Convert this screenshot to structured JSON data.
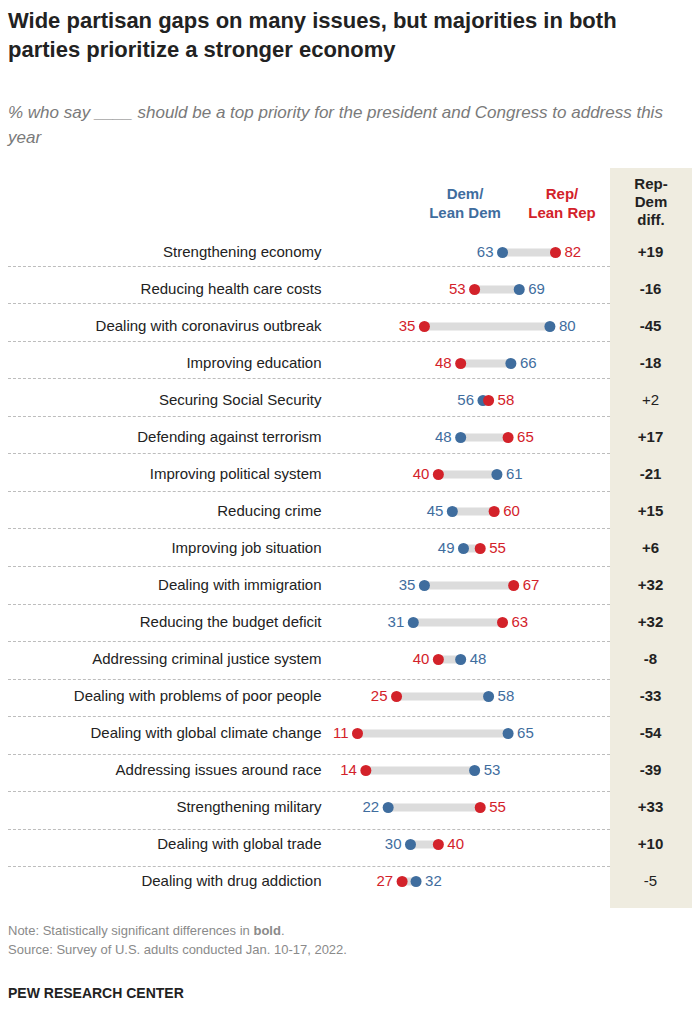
{
  "chart_data": {
    "type": "dot",
    "orientation": "horizontal",
    "title": "Wide partisan gaps on many issues, but majorities in both parties prioritize a stronger economy",
    "subtitle": "% who say ____ should be a top priority for the president and Congress to address this year",
    "categories": [
      "Strengthening economy",
      "Reducing health care costs",
      "Dealing with coronavirus outbreak",
      "Improving education",
      "Securing Social Security",
      "Defending against terrorism",
      "Improving political system",
      "Reducing crime",
      "Improving job situation",
      "Dealing with immigration",
      "Reducing the budget deficit",
      "Addressing criminal justice system",
      "Dealing with problems of poor people",
      "Dealing with global climate change",
      "Addressing issues around race",
      "Strengthening military",
      "Dealing with global trade",
      "Dealing with drug addiction"
    ],
    "series": [
      {
        "name": "Dem/Lean Dem",
        "color": "#3f6d9e",
        "values": [
          63,
          69,
          80,
          66,
          56,
          48,
          61,
          45,
          49,
          35,
          31,
          48,
          58,
          65,
          53,
          22,
          30,
          32
        ]
      },
      {
        "name": "Rep/Lean Rep",
        "color": "#d3222a",
        "values": [
          82,
          53,
          35,
          48,
          58,
          65,
          40,
          60,
          55,
          67,
          63,
          40,
          25,
          11,
          14,
          55,
          40,
          27
        ]
      }
    ],
    "data_labels": true,
    "tick_labels": "y",
    "differences": {
      "title": "Rep-Dem diff.",
      "values": [
        19,
        -16,
        -45,
        -18,
        2,
        17,
        -21,
        15,
        6,
        32,
        32,
        -8,
        -33,
        -54,
        -39,
        33,
        10,
        -5
      ],
      "value_labels": [
        "+19",
        "-16",
        "-45",
        "-18",
        "+2",
        "+17",
        "-21",
        "+15",
        "+6",
        "+32",
        "+32",
        "-8",
        "-33",
        "-54",
        "-39",
        "+33",
        "+10",
        "-5"
      ],
      "significant": [
        true,
        true,
        true,
        true,
        false,
        true,
        true,
        true,
        true,
        true,
        true,
        true,
        true,
        true,
        true,
        true,
        true,
        false
      ]
    },
    "note": "Note: Statistically significant differences in bold.",
    "source": "Source: Survey of U.S. adults conducted Jan. 10-17, 2022.",
    "credit": "PEW RESEARCH CENTER"
  }
}
